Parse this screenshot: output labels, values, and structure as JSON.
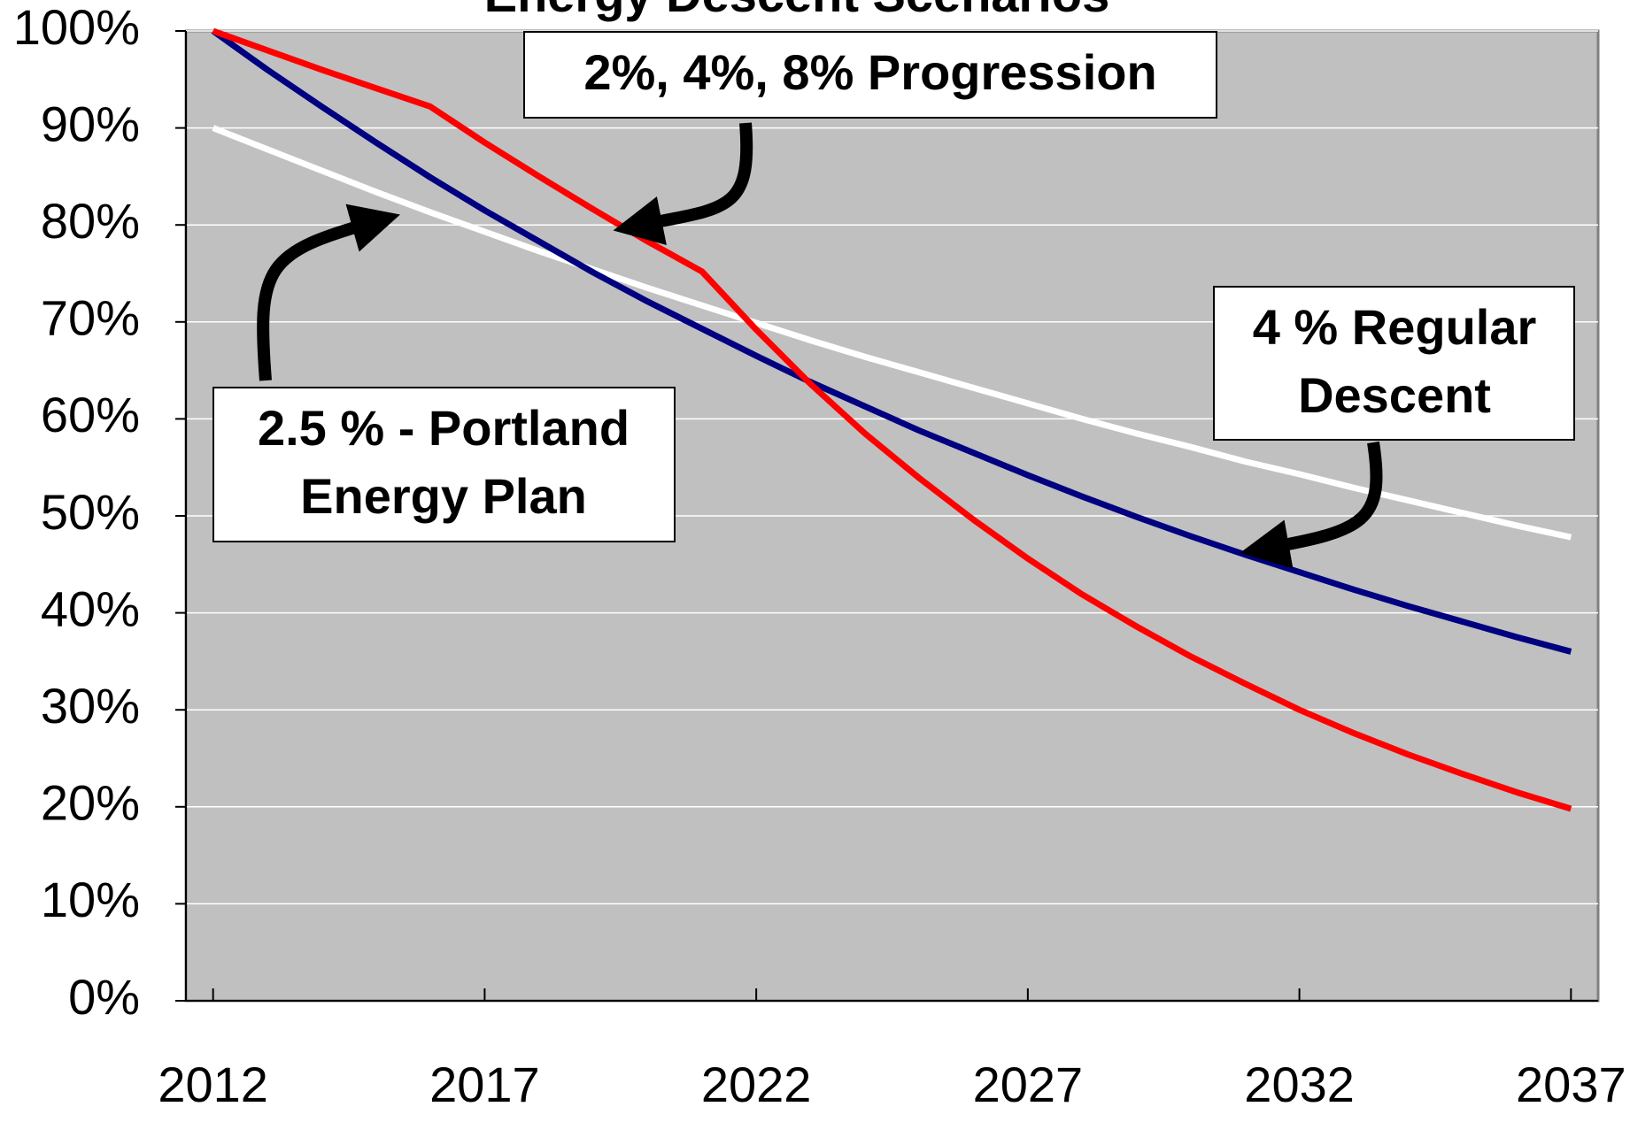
{
  "chart_data": {
    "type": "line",
    "title": "Energy Descent Scenarios",
    "x": [
      2012,
      2013,
      2014,
      2015,
      2016,
      2017,
      2018,
      2019,
      2020,
      2021,
      2022,
      2023,
      2024,
      2025,
      2026,
      2027,
      2028,
      2029,
      2030,
      2031,
      2032,
      2033,
      2034,
      2035,
      2036,
      2037
    ],
    "series": [
      {
        "color": "#ffffff",
        "values": [
          90,
          87.8,
          85.6,
          83.4,
          81.3,
          79.3,
          77.3,
          75.4,
          73.5,
          71.7,
          69.9,
          68.1,
          66.4,
          64.8,
          63.2,
          61.6,
          60.0,
          58.5,
          57.1,
          55.6,
          54.3,
          52.9,
          51.6,
          50.3,
          49.0,
          47.8
        ]
      },
      {
        "color": "#000080",
        "values": [
          100,
          96,
          92.2,
          88.5,
          84.9,
          81.5,
          78.3,
          75.1,
          72.1,
          69.3,
          66.5,
          63.8,
          61.3,
          58.8,
          56.5,
          54.2,
          52.0,
          49.9,
          47.9,
          46.0,
          44.2,
          42.4,
          40.7,
          39.1,
          37.5,
          36.0
        ]
      },
      {
        "color": "#ff0000",
        "values": [
          100,
          98,
          96,
          94.1,
          92.2,
          88.5,
          85,
          81.6,
          78.3,
          75.2,
          69.2,
          63.6,
          58.5,
          53.9,
          49.6,
          45.6,
          41.9,
          38.6,
          35.5,
          32.7,
          30.0,
          27.6,
          25.4,
          23.4,
          21.5,
          19.8
        ]
      }
    ],
    "xlim": [
      2011.5,
      2037.5
    ],
    "xticks": [
      2012,
      2017,
      2022,
      2027,
      2032,
      2037
    ],
    "ylim": [
      0,
      100
    ],
    "yticks": [
      {
        "value": 0,
        "label": "0%"
      },
      {
        "value": 10,
        "label": "10%"
      },
      {
        "value": 20,
        "label": "20%"
      },
      {
        "value": 30,
        "label": "30%"
      },
      {
        "value": 40,
        "label": "40%"
      },
      {
        "value": 50,
        "label": "50%"
      },
      {
        "value": 60,
        "label": "60%"
      },
      {
        "value": 70,
        "label": "70%"
      },
      {
        "value": 80,
        "label": "80%"
      },
      {
        "value": 90,
        "label": "90%"
      },
      {
        "value": 100,
        "label": "100%"
      }
    ],
    "grid": true,
    "background": "#c0c0c0",
    "annotations": [
      {
        "lines": [
          "2%, 4%, 8% Progression"
        ]
      },
      {
        "lines": [
          "2.5 % - Portland",
          "Energy Plan"
        ]
      },
      {
        "lines": [
          "4 % Regular",
          "Descent"
        ]
      }
    ]
  }
}
